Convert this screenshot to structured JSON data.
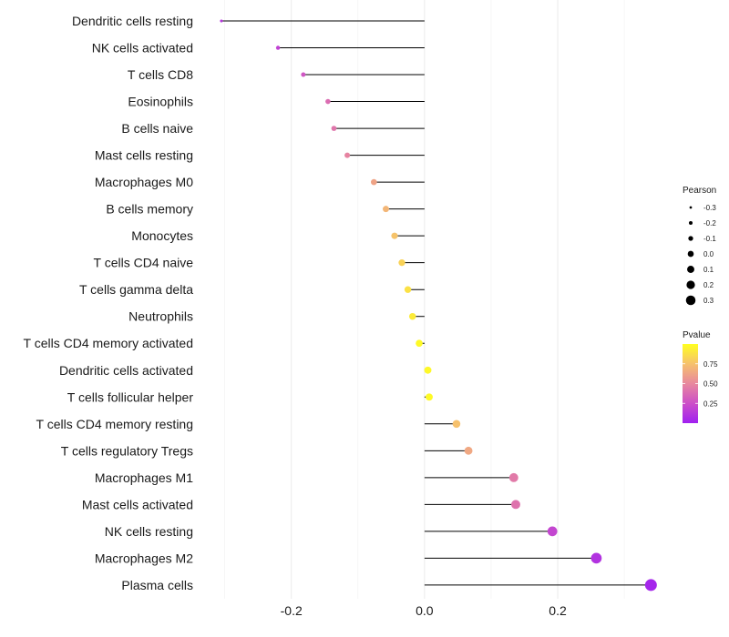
{
  "chart_data": {
    "type": "lollipop",
    "title": "",
    "xlabel": "",
    "ylabel": "",
    "xlim": [
      -0.32,
      0.345
    ],
    "x_ticks": [
      -0.2,
      0.0,
      0.2
    ],
    "x_tick_labels": [
      "-0.2",
      "0.0",
      "0.2"
    ],
    "grid": true,
    "categories": [
      "Dendritic cells resting",
      "NK cells activated",
      "T cells CD8",
      "Eosinophils",
      "B cells naive",
      "Mast cells resting",
      "Macrophages M0",
      "B cells memory",
      "Monocytes",
      "T cells CD4 naive",
      "T cells gamma delta",
      "Neutrophils",
      "T cells CD4 memory activated",
      "Dendritic cells activated",
      "T cells follicular helper",
      "T cells CD4 memory resting",
      "T cells regulatory  Tregs ",
      "Macrophages M1",
      "Mast cells activated",
      "NK cells resting",
      "Macrophages M2",
      "Plasma cells"
    ],
    "pearson": [
      -0.305,
      -0.22,
      -0.182,
      -0.145,
      -0.136,
      -0.116,
      -0.076,
      -0.058,
      -0.045,
      -0.034,
      -0.025,
      -0.018,
      -0.008,
      0.005,
      0.007,
      0.048,
      0.066,
      0.134,
      0.137,
      0.192,
      0.258,
      0.34
    ],
    "pvalue": [
      0.12,
      0.18,
      0.28,
      0.38,
      0.42,
      0.48,
      0.62,
      0.7,
      0.76,
      0.82,
      0.88,
      0.92,
      0.98,
      0.97,
      0.98,
      0.75,
      0.64,
      0.44,
      0.41,
      0.2,
      0.1,
      0.03
    ],
    "legend_size": {
      "title": "Pearson",
      "values": [
        -0.3,
        -0.2,
        -0.1,
        0.0,
        0.1,
        0.2,
        0.3
      ],
      "labels": [
        "-0.3",
        "-0.2",
        "-0.1",
        "0.0",
        "0.1",
        "0.2",
        "0.3"
      ]
    },
    "legend_color": {
      "title": "Pvalue",
      "tick_values": [
        0.25,
        0.5,
        0.75
      ],
      "tick_labels": [
        "0.25",
        "0.50",
        "0.75"
      ],
      "range": [
        0.0,
        1.0
      ],
      "colors": [
        "#a020f0",
        "#cc4fc8",
        "#e8889e",
        "#f6c16d",
        "#ffff20"
      ]
    },
    "legend_position": "right"
  }
}
